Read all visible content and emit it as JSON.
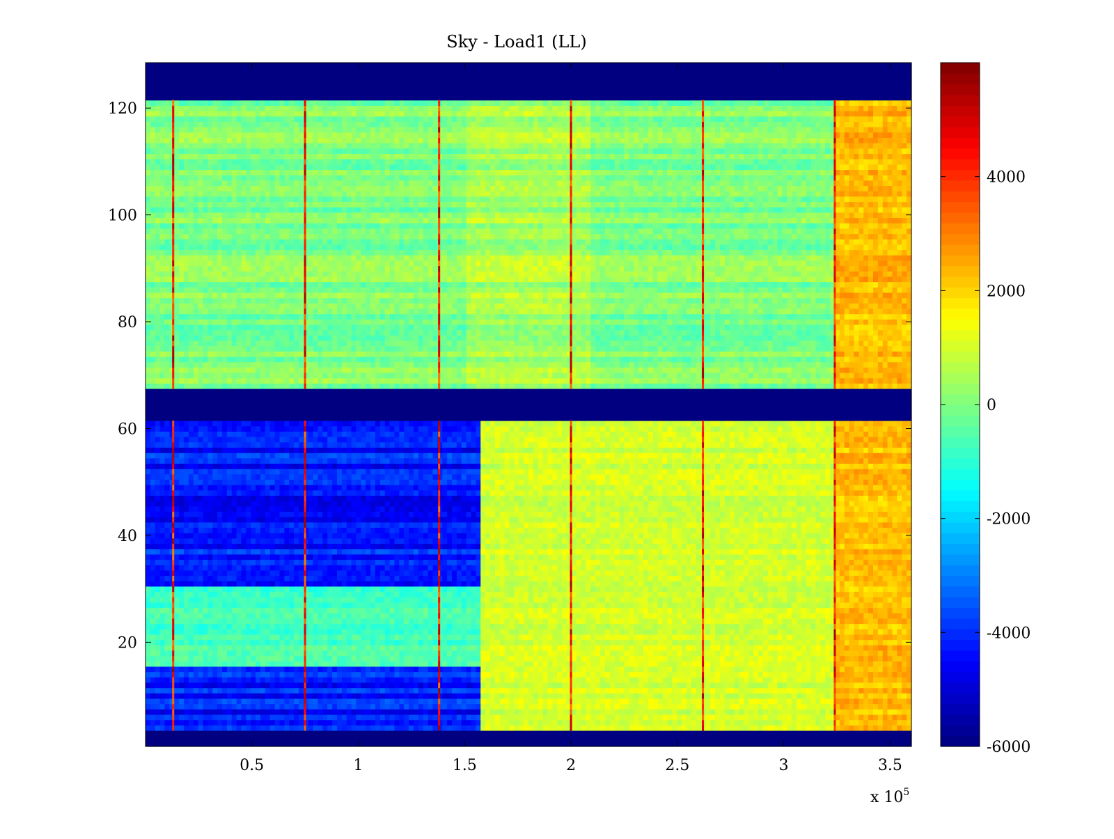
{
  "chart_data": {
    "type": "heatmap",
    "title": "Sky - Load1 (LL)",
    "xlabel": "",
    "ylabel": "",
    "x_exponent_label": {
      "prefix": "x 10",
      "exponent": "5"
    },
    "xlim": [
      0,
      3.6
    ],
    "ylim": [
      0.5,
      128.5
    ],
    "xticks": [
      0.5,
      1,
      1.5,
      2,
      2.5,
      3,
      3.5
    ],
    "xtick_labels": [
      "0.5",
      "1",
      "1.5",
      "2",
      "2.5",
      "3",
      "3.5"
    ],
    "yticks": [
      20,
      40,
      60,
      80,
      100,
      120
    ],
    "ytick_labels": [
      "20",
      "40",
      "60",
      "80",
      "100",
      "120"
    ],
    "colormap": "jet",
    "clim": [
      -6000,
      6000
    ],
    "colorbar": {
      "ticks": [
        -6000,
        -4000,
        -2000,
        0,
        2000,
        4000
      ],
      "tick_labels": [
        "-6000",
        "-4000",
        "-2000",
        "0",
        "2000",
        "4000"
      ],
      "placement": "right"
    },
    "grid": false,
    "x_columns": 160,
    "row_count": 128,
    "masked_value": -6000,
    "masked_rows": [
      [
        1,
        3
      ],
      [
        62,
        67
      ],
      [
        122,
        128
      ]
    ],
    "baseline": {
      "upper_block": {
        "rows": [
          68,
          121
        ],
        "value": 0
      },
      "lower_block_right": {
        "rows": [
          4,
          61
        ],
        "x_start": 1.58,
        "value": 1000
      },
      "lower_block_left_cold": {
        "rows": [
          [
            4,
            15
          ],
          [
            31,
            61
          ]
        ],
        "x_end": 1.58,
        "value": -4200
      },
      "lower_block_left_mid": {
        "rows": [
          16,
          30
        ],
        "x_end": 1.58,
        "value": -700
      }
    },
    "warm_region": {
      "x_start": 3.25,
      "value": 2300
    },
    "vertical_spikes_x": [
      0.13,
      0.75,
      1.38,
      2.0,
      2.62,
      3.24
    ],
    "spike_value": 4300
  }
}
